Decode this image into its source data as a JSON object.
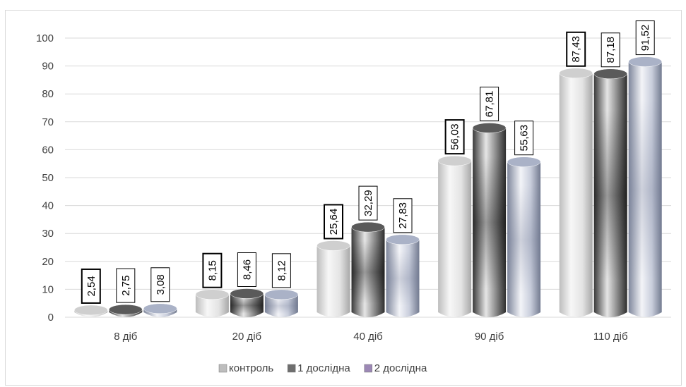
{
  "chart_data": {
    "type": "bar",
    "categories": [
      "8 діб",
      "20 діб",
      "40 діб",
      "90 діб",
      "110 діб"
    ],
    "series": [
      {
        "name": "контроль",
        "values": [
          2.54,
          8.15,
          25.64,
          56.03,
          87.43
        ],
        "labels": [
          "2,54",
          "8,15",
          "25,64",
          "56,03",
          "87,43"
        ],
        "color": "#e8e8e8"
      },
      {
        "name": "1 дослідна",
        "values": [
          2.75,
          8.46,
          32.29,
          67.81,
          87.18
        ],
        "labels": [
          "2,75",
          "8,46",
          "32,29",
          "67,81",
          "87,18"
        ],
        "color": "#555555"
      },
      {
        "name": "2 дослідна",
        "values": [
          3.08,
          8.12,
          27.83,
          55.63,
          91.52
        ],
        "labels": [
          "3,08",
          "8,12",
          "27,83",
          "55,63",
          "91,52"
        ],
        "color": "#a9b1c8"
      }
    ],
    "yticks": [
      "0",
      "10",
      "20",
      "30",
      "40",
      "50",
      "60",
      "70",
      "80",
      "90",
      "100"
    ],
    "ylim": [
      0,
      100
    ],
    "title": "",
    "xlabel": "",
    "ylabel": "",
    "grid": true,
    "legend_position": "bottom"
  }
}
